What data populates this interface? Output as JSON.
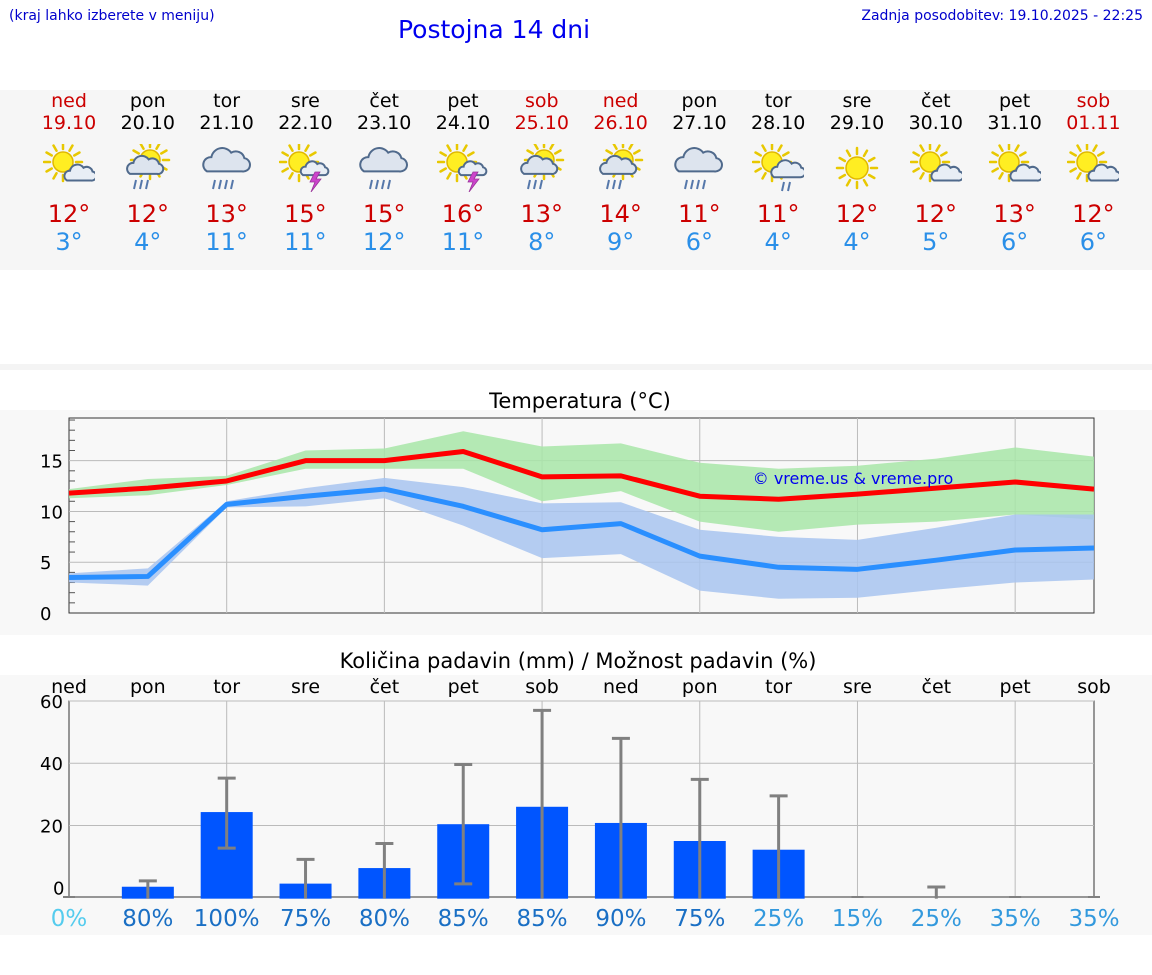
{
  "header": {
    "hint": "(kraj lahko izberete v meniju)",
    "title": "Postojna 14 dni",
    "updated": "Zadnja posodobitev: 19.10.2025 - 22:25"
  },
  "days": [
    {
      "name": "ned",
      "date": "19.10",
      "weekend": true,
      "icon": "sun-cloud-icon",
      "max": "12°",
      "min": "3°"
    },
    {
      "name": "pon",
      "date": "20.10",
      "weekend": false,
      "icon": "sun-cloud-rain-icon",
      "max": "12°",
      "min": "4°"
    },
    {
      "name": "tor",
      "date": "21.10",
      "weekend": false,
      "icon": "cloud-rain-icon",
      "max": "13°",
      "min": "11°"
    },
    {
      "name": "sre",
      "date": "22.10",
      "weekend": false,
      "icon": "sun-thunder-icon",
      "max": "15°",
      "min": "11°"
    },
    {
      "name": "čet",
      "date": "23.10",
      "weekend": false,
      "icon": "cloud-rain-icon",
      "max": "15°",
      "min": "12°"
    },
    {
      "name": "pet",
      "date": "24.10",
      "weekend": false,
      "icon": "sun-thunder-icon",
      "max": "16°",
      "min": "11°"
    },
    {
      "name": "sob",
      "date": "25.10",
      "weekend": true,
      "icon": "sun-cloud-rain-icon",
      "max": "13°",
      "min": "8°"
    },
    {
      "name": "ned",
      "date": "26.10",
      "weekend": true,
      "icon": "sun-cloud-rain-icon",
      "max": "14°",
      "min": "9°"
    },
    {
      "name": "pon",
      "date": "27.10",
      "weekend": false,
      "icon": "cloud-rain-icon",
      "max": "11°",
      "min": "6°"
    },
    {
      "name": "tor",
      "date": "28.10",
      "weekend": false,
      "icon": "sun-cloud-drizzle-icon",
      "max": "11°",
      "min": "4°"
    },
    {
      "name": "sre",
      "date": "29.10",
      "weekend": false,
      "icon": "sun-icon",
      "max": "12°",
      "min": "4°"
    },
    {
      "name": "čet",
      "date": "30.10",
      "weekend": false,
      "icon": "sun-cloud-icon",
      "max": "12°",
      "min": "5°"
    },
    {
      "name": "pet",
      "date": "31.10",
      "weekend": false,
      "icon": "sun-cloud-icon",
      "max": "13°",
      "min": "6°"
    },
    {
      "name": "sob",
      "date": "01.11",
      "weekend": true,
      "icon": "sun-cloud-icon",
      "max": "12°",
      "min": "6°"
    }
  ],
  "colors": {
    "weekend": "#cc0000",
    "max_line": "#ff0000",
    "min_line": "#2a8fff",
    "max_band": "#a8e6a8",
    "min_band": "#a8c4f0",
    "bar": "#0055ff",
    "err": "#808080"
  },
  "chart_data": [
    {
      "type": "line",
      "title": "Temperatura (°C)",
      "watermark": "© vreme.us & vreme.pro",
      "yticks": [
        0,
        5,
        10,
        15
      ],
      "ylim": [
        0,
        19.2
      ],
      "x": [
        0,
        1,
        2,
        3,
        4,
        5,
        6,
        7,
        8,
        9,
        10,
        11,
        12,
        13
      ],
      "series": [
        {
          "name": "max",
          "values": [
            11.8,
            12.3,
            13.0,
            15.0,
            15.0,
            15.9,
            13.4,
            13.5,
            11.5,
            11.2,
            11.7,
            12.3,
            12.9,
            12.2
          ],
          "upper": [
            12.2,
            13.2,
            13.5,
            16.0,
            16.2,
            17.9,
            16.4,
            16.7,
            14.8,
            14.2,
            14.5,
            15.2,
            16.3,
            15.4
          ],
          "lower": [
            11.3,
            11.6,
            12.6,
            14.2,
            14.2,
            14.2,
            11.0,
            12.0,
            9.0,
            8.0,
            8.7,
            9.0,
            9.7,
            9.2
          ]
        },
        {
          "name": "min",
          "values": [
            3.5,
            3.6,
            10.7,
            11.5,
            12.2,
            10.5,
            8.2,
            8.8,
            5.6,
            4.5,
            4.3,
            5.2,
            6.2,
            6.4
          ],
          "upper": [
            3.9,
            4.4,
            11.0,
            12.3,
            13.3,
            12.4,
            10.8,
            10.9,
            8.2,
            7.5,
            7.2,
            8.4,
            9.7,
            9.7
          ],
          "lower": [
            3.0,
            2.7,
            10.4,
            10.5,
            11.3,
            8.6,
            5.4,
            5.8,
            2.2,
            1.4,
            1.5,
            2.3,
            3.0,
            3.3
          ]
        }
      ]
    },
    {
      "type": "bar",
      "title": "Količina padavin (mm) / Možnost padavin (%)",
      "categories": [
        "ned",
        "pon",
        "tor",
        "sre",
        "čet",
        "pet",
        "sob",
        "ned",
        "pon",
        "tor",
        "sre",
        "čet",
        "pet",
        "sob"
      ],
      "yticks": [
        0,
        20,
        40,
        60
      ],
      "ylim": [
        -3,
        60
      ],
      "values": [
        0,
        0.3,
        24.3,
        1.3,
        6.3,
        20.4,
        26.0,
        20.8,
        15.0,
        12.2,
        0,
        0,
        0,
        0
      ],
      "err_high": [
        0,
        2.2,
        35.2,
        9.1,
        14.2,
        39.6,
        57.0,
        48.0,
        34.8,
        29.5,
        0,
        0.2,
        0,
        0
      ],
      "err_low": [
        0,
        0,
        12.7,
        0,
        0,
        1.2,
        0,
        0,
        0,
        0,
        0,
        0,
        0,
        0
      ],
      "probability": [
        "0%",
        "80%",
        "100%",
        "75%",
        "80%",
        "85%",
        "85%",
        "90%",
        "75%",
        "25%",
        "15%",
        "25%",
        "35%",
        "35%"
      ],
      "probability_colors": [
        "#55ccee",
        "#1a6fc4",
        "#1a6fc4",
        "#1a6fc4",
        "#1a6fc4",
        "#1a6fc4",
        "#1a6fc4",
        "#1a6fc4",
        "#1a6fc4",
        "#3399dd",
        "#3399dd",
        "#3399dd",
        "#3399dd",
        "#3399dd"
      ]
    }
  ]
}
